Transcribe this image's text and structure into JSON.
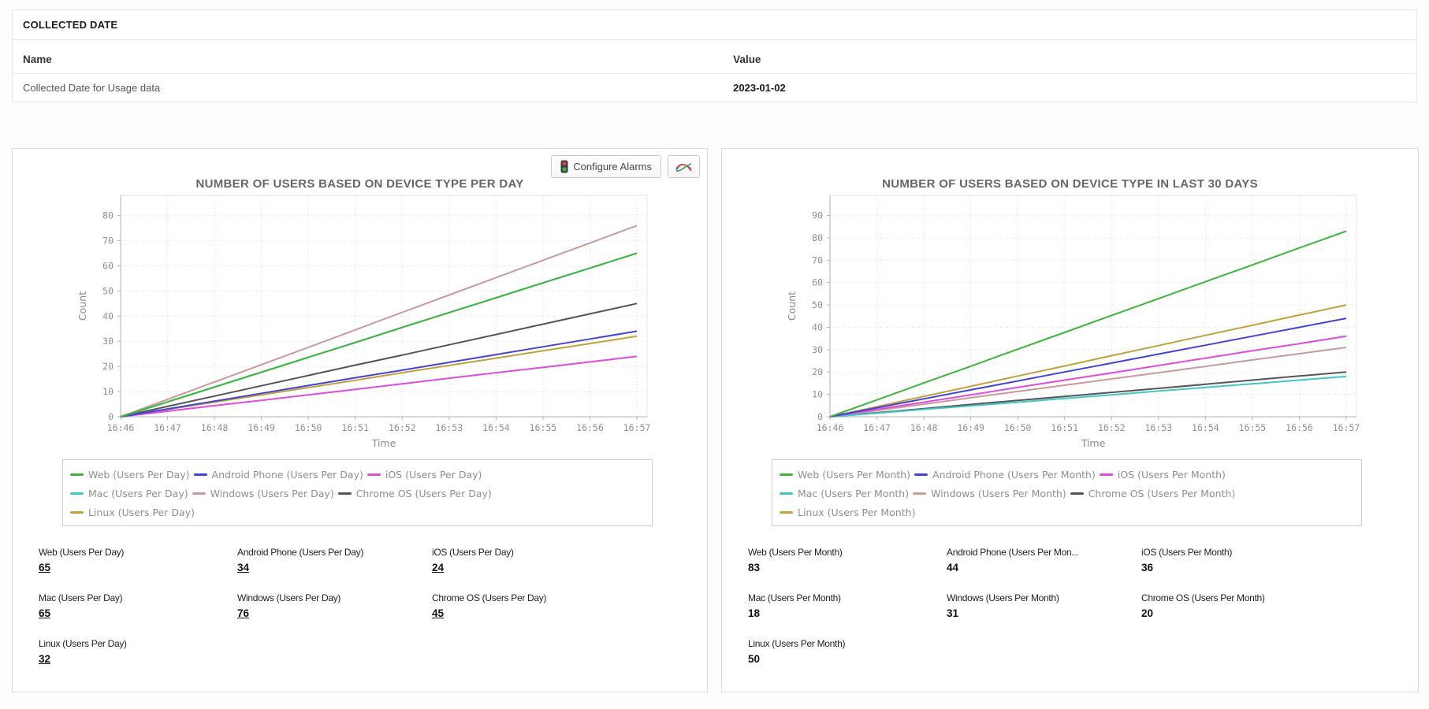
{
  "collected_date": {
    "title": "COLLECTED DATE",
    "columns": {
      "name": "Name",
      "value": "Value"
    },
    "rows": [
      {
        "name": "Collected Date for Usage data",
        "value": "2023-01-02"
      }
    ]
  },
  "toolbar": {
    "configure_alarms_label": "Configure Alarms",
    "icons": {
      "traffic_light": "traffic-light-icon",
      "line_chart": "line-chart-icon"
    }
  },
  "palette": {
    "web_green": "#3bb53b",
    "android_blue": "#4343d6",
    "ios_magenta": "#dd4cdd",
    "mac_teal": "#3fc6c6",
    "windows_rose": "#c99a9a",
    "chromeos_gray": "#555555",
    "linux_gold": "#c2a13b",
    "grid": "#dadada",
    "axis": "#b2b2b2",
    "tick_text": "#8f8f8f",
    "plot_border": "#e3e3e3"
  },
  "chart_data": [
    {
      "type": "line",
      "title": "NUMBER OF USERS BASED ON DEVICE TYPE PER DAY",
      "xlabel": "Time",
      "ylabel": "Count",
      "x": [
        "16:46",
        "16:47",
        "16:48",
        "16:49",
        "16:50",
        "16:51",
        "16:52",
        "16:53",
        "16:54",
        "16:55",
        "16:56",
        "16:57"
      ],
      "ylim": [
        0,
        80
      ],
      "ytick_step": 10,
      "grid": true,
      "legend_position": "bottom",
      "legend_rows": [
        [
          0,
          1,
          2
        ],
        [
          3,
          4,
          5
        ],
        [
          6
        ]
      ],
      "values_are_links": true,
      "series": [
        {
          "name": "Web (Users Per Day)",
          "color": "#3bb53b",
          "final": 65,
          "values": [
            0,
            5.9,
            11.8,
            17.7,
            23.6,
            29.5,
            35.5,
            41.4,
            47.3,
            53.2,
            59.1,
            65
          ]
        },
        {
          "name": "Android Phone (Users Per Day)",
          "color": "#4343d6",
          "final": 34,
          "values": [
            0,
            3.1,
            6.2,
            9.3,
            12.4,
            15.5,
            18.5,
            21.6,
            24.7,
            27.8,
            30.9,
            34
          ]
        },
        {
          "name": "iOS (Users Per Day)",
          "color": "#dd4cdd",
          "final": 24,
          "values": [
            0,
            2.2,
            4.4,
            6.5,
            8.7,
            10.9,
            13.1,
            15.3,
            17.5,
            19.6,
            21.8,
            24
          ]
        },
        {
          "name": "Mac (Users Per Day)",
          "color": "#3fc6c6",
          "final": 65,
          "values": [
            0,
            5.9,
            11.8,
            17.7,
            23.6,
            29.5,
            35.5,
            41.4,
            47.3,
            53.2,
            59.1,
            65
          ]
        },
        {
          "name": "Windows (Users Per Day)",
          "color": "#c99a9a",
          "final": 76,
          "values": [
            0,
            6.9,
            13.8,
            20.7,
            27.6,
            34.5,
            41.5,
            48.4,
            55.3,
            62.2,
            69.1,
            76
          ]
        },
        {
          "name": "Chrome OS (Users Per Day)",
          "color": "#555555",
          "final": 45,
          "values": [
            0,
            4.1,
            8.2,
            12.3,
            16.4,
            20.5,
            24.5,
            28.6,
            32.7,
            36.8,
            40.9,
            45
          ]
        },
        {
          "name": "Linux (Users Per Day)",
          "color": "#c2a13b",
          "final": 32,
          "values": [
            0,
            2.9,
            5.8,
            8.7,
            11.6,
            14.5,
            17.5,
            20.4,
            23.3,
            26.2,
            29.1,
            32
          ]
        }
      ],
      "summary": [
        {
          "label": "Web (Users Per Day)",
          "value": "65"
        },
        {
          "label": "Android Phone (Users Per Day)",
          "value": "34"
        },
        {
          "label": "iOS (Users Per Day)",
          "value": "24"
        },
        {
          "label": "Mac (Users Per Day)",
          "value": "65"
        },
        {
          "label": "Windows (Users Per Day)",
          "value": "76"
        },
        {
          "label": "Chrome OS (Users Per Day)",
          "value": "45"
        },
        {
          "label": "Linux (Users Per Day)",
          "value": "32"
        }
      ]
    },
    {
      "type": "line",
      "title": "NUMBER OF USERS BASED ON DEVICE TYPE IN LAST 30 DAYS",
      "xlabel": "Time",
      "ylabel": "Count",
      "x": [
        "16:46",
        "16:47",
        "16:48",
        "16:49",
        "16:50",
        "16:51",
        "16:52",
        "16:53",
        "16:54",
        "16:55",
        "16:56",
        "16:57"
      ],
      "ylim": [
        0,
        90
      ],
      "ytick_step": 10,
      "grid": true,
      "legend_position": "bottom",
      "legend_rows": [
        [
          0,
          1,
          2
        ],
        [
          3,
          4,
          5
        ],
        [
          6
        ]
      ],
      "values_are_links": false,
      "series": [
        {
          "name": "Web (Users Per Month)",
          "color": "#3bb53b",
          "final": 83,
          "values": [
            0,
            7.5,
            15.1,
            22.6,
            30.2,
            37.7,
            45.3,
            52.8,
            60.4,
            67.9,
            75.5,
            83
          ]
        },
        {
          "name": "Android Phone (Users Per Month)",
          "color": "#4343d6",
          "final": 44,
          "values": [
            0,
            4,
            8,
            12,
            16,
            20,
            24,
            28,
            32,
            36,
            40,
            44
          ]
        },
        {
          "name": "iOS (Users Per Month)",
          "color": "#dd4cdd",
          "final": 36,
          "values": [
            0,
            3.3,
            6.5,
            9.8,
            13.1,
            16.4,
            19.6,
            22.9,
            26.2,
            29.5,
            32.7,
            36
          ]
        },
        {
          "name": "Mac (Users Per Month)",
          "color": "#3fc6c6",
          "final": 18,
          "values": [
            0,
            1.6,
            3.3,
            4.9,
            6.5,
            8.2,
            9.8,
            11.5,
            13.1,
            14.7,
            16.4,
            18
          ]
        },
        {
          "name": "Windows (Users Per Month)",
          "color": "#c99a9a",
          "final": 31,
          "values": [
            0,
            2.8,
            5.6,
            8.5,
            11.3,
            14.1,
            16.9,
            19.7,
            22.5,
            25.4,
            28.2,
            31
          ]
        },
        {
          "name": "Chrome OS (Users Per Month)",
          "color": "#555555",
          "final": 20,
          "values": [
            0,
            1.8,
            3.6,
            5.5,
            7.3,
            9.1,
            10.9,
            12.7,
            14.5,
            16.4,
            18.2,
            20
          ]
        },
        {
          "name": "Linux (Users Per Month)",
          "color": "#c2a13b",
          "final": 50,
          "values": [
            0,
            4.5,
            9.1,
            13.6,
            18.2,
            22.7,
            27.3,
            31.8,
            36.4,
            40.9,
            45.5,
            50
          ]
        }
      ],
      "summary": [
        {
          "label": "Web (Users Per Month)",
          "value": "83"
        },
        {
          "label": "Android Phone (Users Per Mon...",
          "value": "44"
        },
        {
          "label": "iOS (Users Per Month)",
          "value": "36"
        },
        {
          "label": "Mac (Users Per Month)",
          "value": "18"
        },
        {
          "label": "Windows (Users Per Month)",
          "value": "31"
        },
        {
          "label": "Chrome OS (Users Per Month)",
          "value": "20"
        },
        {
          "label": "Linux (Users Per Month)",
          "value": "50"
        }
      ]
    }
  ]
}
